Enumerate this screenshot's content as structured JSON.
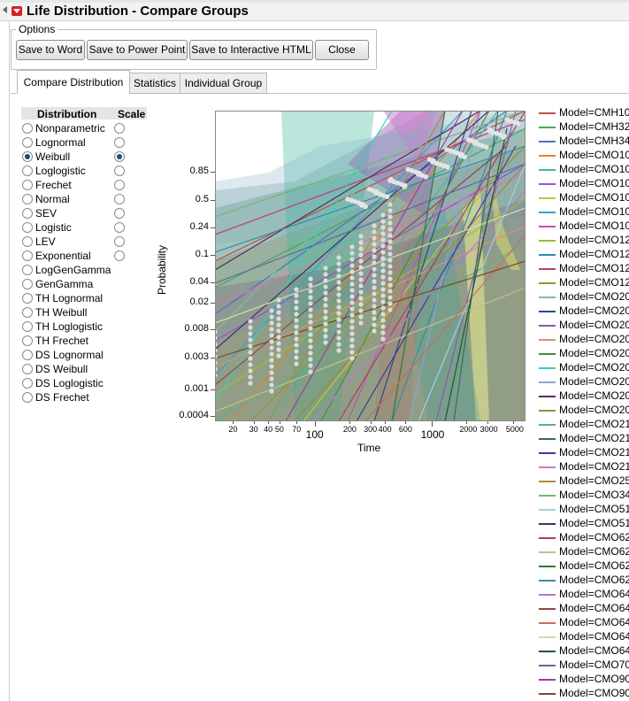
{
  "window": {
    "title": "Life Distribution - Compare Groups"
  },
  "options": {
    "legend": "Options",
    "buttons": [
      "Save to Word",
      "Save to Power Point",
      "Save to Interactive HTML",
      "Close"
    ]
  },
  "tabs": [
    "Compare Distribution",
    "Statistics",
    "Individual Group"
  ],
  "active_tab": 0,
  "distribution_table": {
    "col_distribution": "Distribution",
    "col_scale": "Scale",
    "rows": [
      {
        "label": "Nonparametric",
        "selected": false,
        "scale": false,
        "has_scale": true
      },
      {
        "label": "Lognormal",
        "selected": false,
        "scale": false,
        "has_scale": true
      },
      {
        "label": "Weibull",
        "selected": true,
        "scale": true,
        "has_scale": true
      },
      {
        "label": "Loglogistic",
        "selected": false,
        "scale": false,
        "has_scale": true
      },
      {
        "label": "Frechet",
        "selected": false,
        "scale": false,
        "has_scale": true
      },
      {
        "label": "Normal",
        "selected": false,
        "scale": false,
        "has_scale": true
      },
      {
        "label": "SEV",
        "selected": false,
        "scale": false,
        "has_scale": true
      },
      {
        "label": "Logistic",
        "selected": false,
        "scale": false,
        "has_scale": true
      },
      {
        "label": "LEV",
        "selected": false,
        "scale": false,
        "has_scale": true
      },
      {
        "label": "Exponential",
        "selected": false,
        "scale": false,
        "has_scale": true
      },
      {
        "label": "LogGenGamma",
        "selected": false,
        "scale": false,
        "has_scale": false
      },
      {
        "label": "GenGamma",
        "selected": false,
        "scale": false,
        "has_scale": false
      },
      {
        "label": "TH Lognormal",
        "selected": false,
        "scale": false,
        "has_scale": false
      },
      {
        "label": "TH Weibull",
        "selected": false,
        "scale": false,
        "has_scale": false
      },
      {
        "label": "TH Loglogistic",
        "selected": false,
        "scale": false,
        "has_scale": false
      },
      {
        "label": "TH Frechet",
        "selected": false,
        "scale": false,
        "has_scale": false
      },
      {
        "label": "DS Lognormal",
        "selected": false,
        "scale": false,
        "has_scale": false
      },
      {
        "label": "DS Weibull",
        "selected": false,
        "scale": false,
        "has_scale": false
      },
      {
        "label": "DS Loglogistic",
        "selected": false,
        "scale": false,
        "has_scale": false
      },
      {
        "label": "DS Frechet",
        "selected": false,
        "scale": false,
        "has_scale": false
      }
    ]
  },
  "plot": {
    "ylabel": "Probability",
    "xlabel": "Time",
    "y_ticks": [
      "0.85",
      "0.5",
      "0.24",
      "0.1",
      "0.04",
      "0.02",
      "0.008",
      "0.003",
      "0.001",
      "0.0004"
    ],
    "x_ticks": [
      "20",
      "30",
      "40",
      "50",
      "70",
      "100",
      "200",
      "300",
      "400",
      "600",
      "1000",
      "2000",
      "3000",
      "5000"
    ],
    "x_major_ticks": [
      "100",
      "1000"
    ],
    "x_scale": "log",
    "y_scale": "weibull probability"
  },
  "legend": {
    "items": [
      {
        "label": "Model=CMH10",
        "color": "#c0504d"
      },
      {
        "label": "Model=CMH32",
        "color": "#4ea64e"
      },
      {
        "label": "Model=CMH34",
        "color": "#4f6fc6"
      },
      {
        "label": "Model=CMO10",
        "color": "#e2823a"
      },
      {
        "label": "Model=CMO10",
        "color": "#3fb6a2"
      },
      {
        "label": "Model=CMO10",
        "color": "#9a4fd0"
      },
      {
        "label": "Model=CMO10",
        "color": "#c9c23a"
      },
      {
        "label": "Model=CMO10",
        "color": "#3aa0c8"
      },
      {
        "label": "Model=CMO10",
        "color": "#c84fb0"
      },
      {
        "label": "Model=CMO12",
        "color": "#9bbb3a"
      },
      {
        "label": "Model=CMO12",
        "color": "#2f8fa0"
      },
      {
        "label": "Model=CMO12",
        "color": "#c03a7a"
      },
      {
        "label": "Model=CMO12",
        "color": "#8a9a3a"
      },
      {
        "label": "Model=CMO20",
        "color": "#7ac0a0"
      },
      {
        "label": "Model=CMO20",
        "color": "#2a4a8a"
      },
      {
        "label": "Model=CMO20",
        "color": "#8a5aa8"
      },
      {
        "label": "Model=CMO20",
        "color": "#e0906a"
      },
      {
        "label": "Model=CMO20",
        "color": "#4a8a3a"
      },
      {
        "label": "Model=CMO20",
        "color": "#3ad0b0"
      },
      {
        "label": "Model=CMO20",
        "color": "#8fa0d8"
      },
      {
        "label": "Model=CMO20",
        "color": "#5a2a5a"
      },
      {
        "label": "Model=CMO20",
        "color": "#9a8a3a"
      },
      {
        "label": "Model=CMO21",
        "color": "#5ab08a"
      },
      {
        "label": "Model=CMO21",
        "color": "#3a6a5a"
      },
      {
        "label": "Model=CMO21",
        "color": "#3a3aa0"
      },
      {
        "label": "Model=CMO21",
        "color": "#d07ab8"
      },
      {
        "label": "Model=CMO25",
        "color": "#b08a3a"
      },
      {
        "label": "Model=CMO34",
        "color": "#7ab07a"
      },
      {
        "label": "Model=CMO51",
        "color": "#a0d0e0"
      },
      {
        "label": "Model=CMO51",
        "color": "#4a2a6a"
      },
      {
        "label": "Model=CMO62",
        "color": "#b03a6a"
      },
      {
        "label": "Model=CMO62",
        "color": "#c0c08a"
      },
      {
        "label": "Model=CMO62",
        "color": "#2a7a3a"
      },
      {
        "label": "Model=CMO62",
        "color": "#3a8ab0"
      },
      {
        "label": "Model=CMO64",
        "color": "#b07ad0"
      },
      {
        "label": "Model=CMO64",
        "color": "#8a4a4a"
      },
      {
        "label": "Model=CMO64",
        "color": "#d06a5a"
      },
      {
        "label": "Model=CMO64",
        "color": "#d0e0a0"
      },
      {
        "label": "Model=CMO64",
        "color": "#1a5a2a"
      },
      {
        "label": "Model=CMO70",
        "color": "#5a6aa0"
      },
      {
        "label": "Model=CMO90",
        "color": "#a03aa0"
      },
      {
        "label": "Model=CMO90",
        "color": "#7a4a2a"
      }
    ]
  }
}
